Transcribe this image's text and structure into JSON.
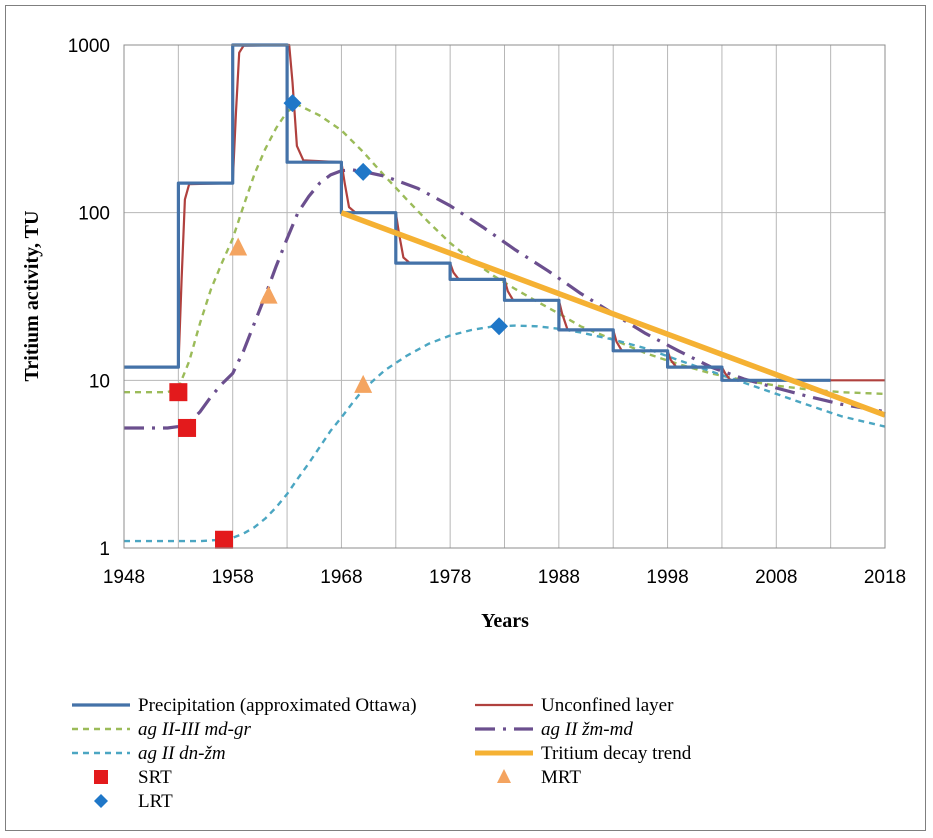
{
  "chart_data": {
    "type": "line",
    "title": "",
    "xlabel": "Years",
    "ylabel": "Tritium activity, TU",
    "xlim": [
      1948,
      2018
    ],
    "ylim": [
      1,
      1000
    ],
    "yscale": "log",
    "grid": true,
    "x_ticks": [
      "1948",
      "1958",
      "1968",
      "1978",
      "1988",
      "1998",
      "2008",
      "2018"
    ],
    "y_ticks": [
      "1",
      "10",
      "100",
      "1000"
    ],
    "legend_position": "bottom",
    "series": [
      {
        "name": "Precipitation (approximated Ottawa)",
        "style": "step",
        "color": "#4472a8",
        "x": [
          1948,
          1953,
          1953,
          1958,
          1958,
          1963,
          1963,
          1968,
          1968,
          1973,
          1973,
          1978,
          1978,
          1983,
          1983,
          1988,
          1988,
          1993,
          1993,
          1998,
          1998,
          2003,
          2003,
          2008,
          2008,
          2013
        ],
        "y": [
          12,
          12,
          150,
          150,
          1000,
          1000,
          200,
          200,
          100,
          100,
          50,
          50,
          40,
          40,
          30,
          30,
          20,
          20,
          15,
          15,
          12,
          12,
          10,
          10,
          10,
          10
        ]
      },
      {
        "name": "Unconfined layer",
        "style": "solid",
        "color": "#b0413e",
        "x": [
          1948,
          1953,
          1953.3,
          1953.6,
          1954,
          1958,
          1958.3,
          1958.6,
          1959,
          1963.2,
          1963.5,
          1963.9,
          1964.5,
          1968,
          1968.3,
          1968.7,
          1969.3,
          1973,
          1973.3,
          1973.7,
          1974.3,
          1978,
          1978.3,
          1978.8,
          1983,
          1983.3,
          1983.8,
          1988,
          1988.3,
          1988.8,
          1993,
          1993.3,
          1993.8,
          1998,
          1998.3,
          1998.8,
          2003,
          2003.3,
          2003.8,
          2018
        ],
        "y": [
          12,
          12,
          40,
          120,
          148,
          150,
          400,
          900,
          990,
          1000,
          600,
          250,
          205,
          200,
          150,
          108,
          100,
          100,
          75,
          54,
          50,
          50,
          44,
          40,
          40,
          34,
          30,
          30,
          25,
          20,
          20,
          17,
          15,
          15,
          13.2,
          12,
          12,
          11,
          10,
          10
        ]
      },
      {
        "name": "ag II-III md-gr",
        "style": "dashed",
        "color": "#9bbb59",
        "x": [
          1948,
          1952,
          1953,
          1954,
          1955,
          1956,
          1957,
          1958,
          1959,
          1960,
          1961,
          1962,
          1963,
          1964,
          1966,
          1968,
          1970,
          1972,
          1974,
          1976,
          1978,
          1980,
          1982,
          1984,
          1986,
          1988,
          1990,
          1993,
          1996,
          1999,
          2002,
          2005,
          2008,
          2011,
          2014,
          2018
        ],
        "y": [
          8.5,
          8.5,
          9,
          13,
          22,
          35,
          50,
          70,
          110,
          170,
          240,
          320,
          400,
          440,
          380,
          310,
          230,
          165,
          120,
          88,
          66,
          52,
          42,
          35,
          29.5,
          25,
          21,
          17.5,
          14.5,
          12.5,
          11,
          10,
          9.3,
          8.8,
          8.5,
          8.3
        ]
      },
      {
        "name": "ag II žm-md",
        "style": "dashdot",
        "color": "#6b4f8e",
        "x": [
          1948,
          1952,
          1953,
          1954,
          1955,
          1956,
          1957,
          1958,
          1959,
          1960,
          1961,
          1962,
          1963,
          1964,
          1965,
          1966,
          1967,
          1968,
          1969,
          1970,
          1972,
          1975,
          1978,
          1981,
          1984,
          1987,
          1990,
          1993,
          1996,
          1999,
          2002,
          2005,
          2008,
          2011,
          2014,
          2018
        ],
        "y": [
          5.2,
          5.2,
          5.3,
          5.6,
          6.5,
          8,
          9.5,
          11,
          15,
          22,
          32,
          48,
          70,
          100,
          125,
          150,
          168,
          178,
          180,
          176,
          165,
          140,
          110,
          82,
          60,
          45,
          33,
          25,
          19,
          15,
          12,
          10.2,
          9,
          8,
          7.2,
          6.5
        ]
      },
      {
        "name": "ag II dn-žm",
        "style": "dashed",
        "color": "#4ba6c2",
        "x": [
          1948,
          1955,
          1957,
          1958,
          1959,
          1960,
          1961,
          1962,
          1963,
          1964,
          1965,
          1966,
          1967,
          1968,
          1969,
          1970,
          1972,
          1974,
          1976,
          1978,
          1980,
          1982,
          1984,
          1986,
          1988,
          1990,
          1993,
          1996,
          1999,
          2002,
          2005,
          2008,
          2011,
          2014,
          2018
        ],
        "y": [
          1.1,
          1.1,
          1.12,
          1.15,
          1.22,
          1.33,
          1.5,
          1.75,
          2.1,
          2.6,
          3.2,
          4,
          5,
          6,
          7.3,
          8.8,
          11.5,
          14,
          16.5,
          18.5,
          20,
          21,
          21.2,
          21,
          20.3,
          19.3,
          17.5,
          15.5,
          13.2,
          11.3,
          9.7,
          8.3,
          7.1,
          6.1,
          5.3
        ]
      },
      {
        "name": "Tritium decay trend",
        "style": "solid-thick",
        "color": "#f5b133",
        "x": [
          1968,
          2018
        ],
        "y": [
          100,
          6.2
        ]
      },
      {
        "name": "SRT",
        "style": "marker-square",
        "color": "#e31a1c",
        "x": [
          1953,
          1953.8,
          1957.2
        ],
        "y": [
          8.5,
          5.2,
          1.12
        ]
      },
      {
        "name": "MRT",
        "style": "marker-triangle",
        "color": "#f4a460",
        "x": [
          1958.5,
          1961.3,
          1970
        ],
        "y": [
          62,
          32,
          9.4
        ]
      },
      {
        "name": "LRT",
        "style": "marker-diamond",
        "color": "#1f77c8",
        "x": [
          1963.5,
          1970,
          1982.5
        ],
        "y": [
          450,
          175,
          21
        ]
      }
    ]
  }
}
